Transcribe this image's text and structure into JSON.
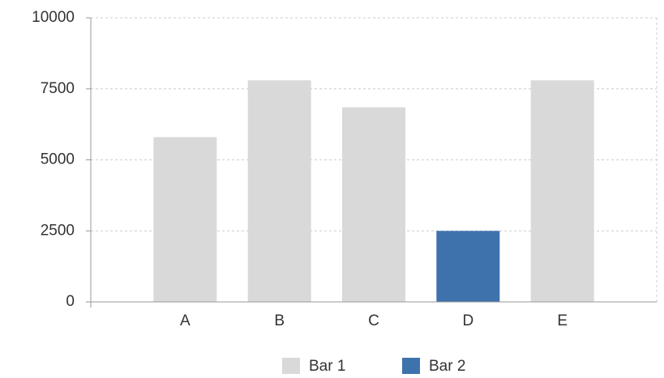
{
  "chart_data": {
    "type": "bar",
    "categories": [
      "A",
      "B",
      "C",
      "D",
      "E"
    ],
    "series": [
      {
        "name": "Bar 1",
        "color": "#d9d9d9",
        "values": [
          5800,
          7800,
          6850,
          null,
          7800
        ]
      },
      {
        "name": "Bar 2",
        "color": "#3d72ad",
        "values": [
          null,
          null,
          null,
          2500,
          null
        ]
      }
    ],
    "ylim": [
      0,
      10000
    ],
    "yticks": [
      0,
      2500,
      5000,
      7500,
      10000
    ],
    "grid": true,
    "legend": "bottom"
  }
}
